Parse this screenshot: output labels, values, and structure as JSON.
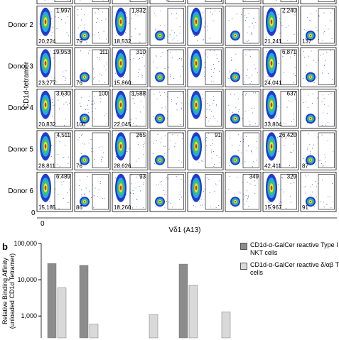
{
  "panel_a": {
    "y_axis_label": "CD1d-tetramer",
    "x_axis_label": "Vδ1 (A13)",
    "y_zero": "0",
    "x_zero": "0",
    "rows": [
      {
        "label": "Donor 2",
        "cells": [
          {
            "top": "1,997",
            "bottom": "20,224"
          },
          {
            "bottom": "79"
          },
          {
            "top": "1,832",
            "bottom": "18,532"
          },
          null,
          null,
          null,
          {
            "top": "2,240",
            "bottom": "21,241"
          },
          {
            "bottom": "137"
          }
        ]
      },
      {
        "label": "Donor 3",
        "cells": [
          {
            "top": "19,953",
            "bottom": "23,277"
          },
          {
            "top": "111",
            "bottom": "76"
          },
          {
            "top": "310",
            "bottom": "15,860"
          },
          null,
          null,
          null,
          {
            "top": "6,871",
            "bottom": "24,041"
          },
          null
        ]
      },
      {
        "label": "Donor 4",
        "cells": [
          {
            "top": "3,630",
            "bottom": "20,832"
          },
          {
            "top": "100",
            "bottom": "100"
          },
          {
            "top": "1,588",
            "bottom": "22,045"
          },
          null,
          null,
          null,
          {
            "top": "637",
            "bottom": "33,804"
          },
          null
        ]
      },
      {
        "label": "Donor 5",
        "cells": [
          {
            "top": "4,511",
            "bottom": "28,811"
          },
          {
            "bottom": "76"
          },
          {
            "top": "265",
            "bottom": "28,626"
          },
          null,
          {
            "top": "91"
          },
          null,
          {
            "top": "26,420",
            "bottom": "42,411"
          },
          {
            "bottom": "87"
          }
        ]
      },
      {
        "label": "Donor 6",
        "cells": [
          {
            "top": "6,489",
            "bottom": "15,185"
          },
          {
            "bottom": "86"
          },
          {
            "top": "93",
            "bottom": "18,260"
          },
          null,
          null,
          {
            "top": "349"
          },
          {
            "top": "329",
            "bottom": "15,967"
          },
          {
            "bottom": "91"
          }
        ]
      }
    ]
  },
  "panel_b": {
    "label": "b",
    "chart_data": {
      "type": "bar",
      "y_axis_label": "Relative Binding Affinity (unloaded CD1d Tetramer)",
      "categories": [
        null,
        null,
        null,
        null,
        null
      ],
      "log_scale": true,
      "ylim": [
        250,
        100000
      ],
      "yticks": [
        {
          "value": 1000,
          "label": "1,000"
        },
        {
          "value": 10000,
          "label": "10,000"
        },
        {
          "value": 100000,
          "label": "100,000"
        }
      ],
      "series": [
        {
          "name": "CD1d-α-GalCer reactive Type I NKT cells",
          "color": "#8c8c8c",
          "values": [
            28000,
            25000,
            null,
            27000,
            null
          ]
        },
        {
          "name": "CD1d-α-GalCer reactive δ/αβ T cells",
          "color": "#d9d9d9",
          "values": [
            6000,
            600,
            1100,
            7000,
            1300
          ]
        }
      ]
    }
  }
}
